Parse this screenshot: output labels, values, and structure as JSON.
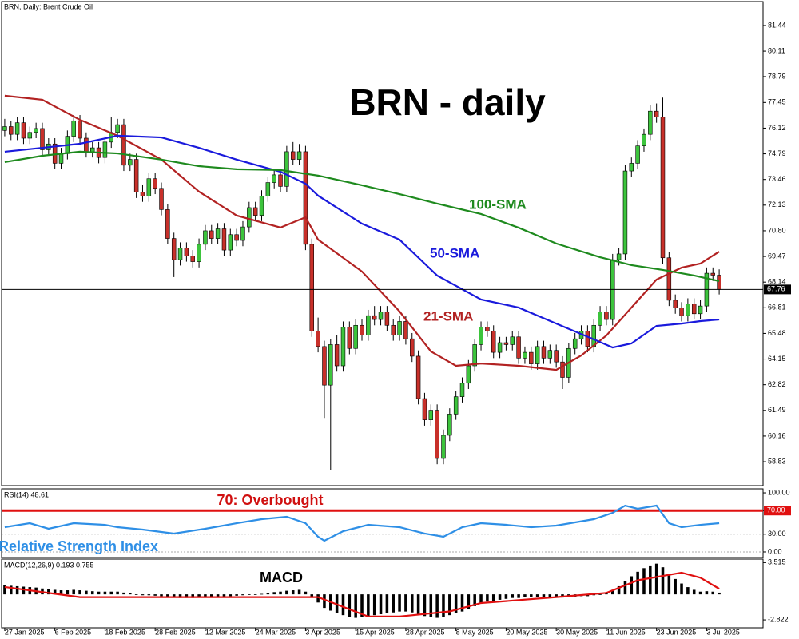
{
  "chart_data": [
    {
      "type": "candlestick",
      "title": "BRN, Daily:  Brent Crude Oil",
      "annotation": "BRN - daily",
      "up_color": "#3cc43c",
      "down_color": "#c8302a",
      "xlim": [
        -0.5,
        121
      ],
      "ylim": [
        57.59,
        82.68
      ],
      "yticks": [
        81.44,
        80.11,
        78.79,
        77.45,
        76.12,
        74.79,
        73.46,
        72.13,
        {
          "value": 70.8,
          "label": "70.80"
        },
        69.47,
        68.14,
        66.81,
        65.48,
        64.15,
        62.82,
        61.49,
        60.16,
        58.83
      ],
      "xticks": [
        {
          "value": 0,
          "label": "27 Jan 2025"
        },
        {
          "value": 8,
          "label": "6 Feb 2025"
        },
        {
          "value": 16,
          "label": "18 Feb 2025"
        },
        {
          "value": 24,
          "label": "28 Feb 2025"
        },
        {
          "value": 32,
          "label": "12 Mar 2025"
        },
        {
          "value": 40,
          "label": "24 Mar 2025"
        },
        {
          "value": 48,
          "label": "3 Apr 2025"
        },
        {
          "value": 56,
          "label": "15 Apr 2025"
        },
        {
          "value": 64,
          "label": "28 Apr 2025"
        },
        {
          "value": 72,
          "label": "8 May 2025"
        },
        {
          "value": 80,
          "label": "20 May 2025"
        },
        {
          "value": 88,
          "label": "30 May 2025"
        },
        {
          "value": 96,
          "label": "11 Jun 2025"
        },
        {
          "value": 104,
          "label": "23 Jun 2025"
        },
        {
          "value": 112,
          "label": "3 Jul 2025"
        }
      ],
      "candles": [
        [
          76.0,
          76.6,
          75.7,
          76.2
        ],
        [
          76.2,
          76.5,
          75.5,
          75.8
        ],
        [
          75.8,
          76.7,
          75.5,
          76.4
        ],
        [
          76.4,
          76.7,
          75.3,
          75.6
        ],
        [
          75.6,
          76.2,
          75.3,
          75.9
        ],
        [
          75.9,
          76.4,
          75.6,
          76.1
        ],
        [
          76.1,
          76.4,
          74.7,
          75.0
        ],
        [
          75.0,
          75.6,
          74.7,
          75.3
        ],
        [
          75.3,
          75.6,
          74.0,
          74.3
        ],
        [
          74.3,
          75.1,
          74.0,
          74.8
        ],
        [
          74.8,
          76.0,
          74.5,
          75.7
        ],
        [
          75.7,
          76.8,
          75.4,
          76.5
        ],
        [
          76.5,
          76.8,
          75.3,
          75.6
        ],
        [
          75.6,
          75.9,
          74.6,
          74.9
        ],
        [
          74.9,
          75.4,
          74.6,
          75.1
        ],
        [
          75.1,
          75.4,
          74.3,
          74.6
        ],
        [
          74.6,
          75.7,
          74.3,
          75.4
        ],
        [
          75.4,
          76.7,
          75.1,
          75.9
        ],
        [
          75.9,
          76.6,
          75.6,
          76.3
        ],
        [
          76.3,
          76.6,
          73.9,
          74.2
        ],
        [
          74.2,
          74.8,
          73.9,
          74.5
        ],
        [
          74.5,
          74.8,
          72.5,
          72.8
        ],
        [
          72.8,
          73.2,
          72.3,
          72.6
        ],
        [
          72.6,
          73.8,
          72.3,
          73.5
        ],
        [
          73.5,
          73.8,
          72.7,
          73.0
        ],
        [
          73.0,
          73.3,
          71.6,
          71.9
        ],
        [
          71.9,
          72.2,
          70.1,
          70.4
        ],
        [
          70.4,
          70.7,
          68.4,
          69.3
        ],
        [
          69.3,
          70.2,
          69.0,
          69.9
        ],
        [
          69.9,
          70.2,
          69.2,
          69.5
        ],
        [
          69.5,
          69.8,
          68.9,
          69.2
        ],
        [
          69.2,
          70.4,
          68.9,
          70.1
        ],
        [
          70.1,
          71.1,
          69.8,
          70.8
        ],
        [
          70.8,
          71.1,
          70.1,
          70.4
        ],
        [
          70.4,
          71.2,
          70.1,
          70.9
        ],
        [
          70.9,
          71.2,
          69.5,
          69.8
        ],
        [
          69.8,
          70.9,
          69.5,
          70.6
        ],
        [
          70.6,
          70.9,
          70.0,
          70.3
        ],
        [
          70.3,
          71.3,
          70.0,
          71.0
        ],
        [
          71.0,
          72.3,
          70.7,
          72.0
        ],
        [
          72.0,
          72.3,
          71.3,
          71.6
        ],
        [
          71.6,
          72.9,
          71.3,
          72.6
        ],
        [
          72.6,
          73.6,
          72.3,
          73.3
        ],
        [
          73.3,
          74.0,
          73.0,
          73.7
        ],
        [
          73.7,
          74.0,
          72.8,
          73.1
        ],
        [
          73.1,
          75.2,
          72.8,
          74.9
        ],
        [
          74.9,
          75.4,
          74.2,
          74.5
        ],
        [
          74.5,
          75.3,
          74.2,
          74.9
        ],
        [
          74.9,
          75.2,
          69.8,
          70.1
        ],
        [
          70.1,
          70.4,
          65.3,
          65.6
        ],
        [
          65.6,
          66.3,
          64.5,
          64.8
        ],
        [
          64.8,
          65.1,
          61.1,
          62.8
        ],
        [
          62.8,
          65.2,
          58.4,
          64.9
        ],
        [
          64.9,
          65.4,
          63.5,
          63.8
        ],
        [
          63.8,
          66.1,
          63.5,
          65.8
        ],
        [
          65.8,
          66.1,
          64.4,
          64.7
        ],
        [
          64.7,
          66.2,
          64.4,
          65.9
        ],
        [
          65.9,
          66.2,
          65.1,
          65.4
        ],
        [
          65.4,
          66.7,
          65.1,
          66.4
        ],
        [
          66.4,
          66.9,
          65.9,
          66.2
        ],
        [
          66.2,
          66.9,
          65.9,
          66.6
        ],
        [
          66.6,
          66.9,
          65.6,
          65.9
        ],
        [
          65.9,
          66.2,
          65.1,
          65.4
        ],
        [
          65.4,
          66.4,
          65.1,
          66.1
        ],
        [
          66.1,
          66.4,
          64.9,
          65.2
        ],
        [
          65.2,
          65.5,
          64.0,
          64.3
        ],
        [
          64.3,
          64.6,
          61.8,
          62.1
        ],
        [
          62.1,
          62.4,
          60.7,
          61.0
        ],
        [
          61.0,
          61.8,
          60.7,
          61.5
        ],
        [
          61.5,
          61.8,
          58.7,
          59.0
        ],
        [
          59.0,
          60.5,
          58.7,
          60.2
        ],
        [
          60.2,
          61.6,
          59.9,
          61.3
        ],
        [
          61.3,
          62.5,
          61.0,
          62.2
        ],
        [
          62.2,
          63.2,
          61.9,
          62.9
        ],
        [
          62.9,
          64.1,
          62.6,
          63.8
        ],
        [
          63.8,
          65.2,
          63.5,
          64.9
        ],
        [
          64.9,
          66.1,
          64.6,
          65.8
        ],
        [
          65.8,
          66.1,
          65.3,
          65.6
        ],
        [
          65.6,
          65.9,
          64.2,
          64.5
        ],
        [
          64.5,
          65.3,
          64.2,
          65.0
        ],
        [
          65.0,
          65.3,
          64.6,
          64.9
        ],
        [
          64.9,
          65.6,
          64.6,
          65.3
        ],
        [
          65.3,
          65.6,
          63.9,
          64.2
        ],
        [
          64.2,
          64.8,
          63.9,
          64.5
        ],
        [
          64.5,
          64.8,
          63.6,
          63.9
        ],
        [
          63.9,
          65.1,
          63.6,
          64.8
        ],
        [
          64.8,
          65.1,
          63.9,
          64.2
        ],
        [
          64.2,
          64.9,
          63.9,
          64.6
        ],
        [
          64.6,
          64.9,
          63.7,
          64.0
        ],
        [
          64.0,
          64.3,
          62.6,
          63.2
        ],
        [
          63.2,
          65.0,
          62.9,
          64.7
        ],
        [
          64.7,
          65.5,
          64.4,
          65.2
        ],
        [
          65.2,
          65.9,
          64.9,
          65.6
        ],
        [
          65.6,
          65.9,
          64.5,
          64.8
        ],
        [
          64.8,
          66.2,
          64.5,
          65.9
        ],
        [
          65.9,
          66.9,
          65.6,
          66.6
        ],
        [
          66.6,
          66.9,
          65.9,
          66.2
        ],
        [
          66.2,
          69.6,
          65.9,
          69.3
        ],
        [
          69.3,
          69.9,
          69.0,
          69.6
        ],
        [
          69.6,
          74.2,
          69.3,
          73.9
        ],
        [
          73.9,
          74.6,
          73.6,
          74.3
        ],
        [
          74.3,
          75.5,
          74.0,
          75.2
        ],
        [
          75.2,
          76.1,
          74.9,
          75.8
        ],
        [
          75.8,
          77.3,
          75.5,
          77.0
        ],
        [
          77.0,
          77.4,
          76.4,
          76.7
        ],
        [
          76.7,
          77.7,
          69.1,
          69.4
        ],
        [
          69.4,
          69.7,
          66.9,
          67.2
        ],
        [
          67.2,
          67.5,
          66.5,
          66.8
        ],
        [
          66.8,
          67.1,
          66.1,
          66.4
        ],
        [
          66.4,
          67.3,
          66.1,
          67.0
        ],
        [
          67.0,
          67.3,
          66.2,
          66.5
        ],
        [
          66.5,
          67.2,
          66.2,
          66.9
        ],
        [
          66.9,
          68.9,
          66.6,
          68.6
        ],
        [
          68.6,
          68.9,
          68.2,
          68.5
        ],
        [
          68.5,
          68.8,
          67.5,
          67.76
        ]
      ],
      "series": [
        {
          "name": "21-SMA",
          "color": "#b22222",
          "x": [
            0,
            6,
            12,
            18,
            25,
            31,
            37,
            44,
            48,
            50,
            57,
            63,
            68,
            72,
            76,
            82,
            88,
            92,
            96,
            100,
            104,
            108,
            111,
            114
          ],
          "values": [
            77.8,
            77.59,
            76.55,
            75.73,
            74.49,
            72.83,
            71.59,
            70.97,
            71.5,
            70.34,
            68.69,
            66.62,
            64.55,
            63.8,
            63.92,
            63.8,
            63.59,
            64.34,
            65.37,
            66.82,
            68.27,
            68.89,
            69.1,
            69.72
          ]
        },
        {
          "name": "50-SMA",
          "color": "#1a1adc",
          "x": [
            0,
            6,
            12,
            18,
            25,
            31,
            37,
            44,
            48,
            50,
            57,
            63,
            69,
            76,
            82,
            88,
            94,
            97,
            100,
            104,
            108,
            111,
            114
          ],
          "values": [
            74.9,
            75.1,
            75.31,
            75.73,
            75.64,
            75.1,
            74.49,
            73.86,
            73.24,
            72.62,
            71.17,
            70.34,
            68.48,
            67.24,
            66.82,
            65.99,
            65.17,
            64.75,
            64.96,
            65.87,
            65.99,
            66.12,
            66.2
          ]
        },
        {
          "name": "100-SMA",
          "color": "#1e8a1e",
          "x": [
            0,
            6,
            12,
            18,
            25,
            31,
            37,
            44,
            50,
            57,
            63,
            69,
            76,
            82,
            88,
            95,
            100,
            105,
            110,
            114
          ],
          "values": [
            74.36,
            74.69,
            74.9,
            74.81,
            74.49,
            74.15,
            73.99,
            73.95,
            73.66,
            73.16,
            72.7,
            72.21,
            71.67,
            70.96,
            70.14,
            69.43,
            69.02,
            68.77,
            68.48,
            68.19
          ]
        }
      ]
    },
    {
      "type": "line",
      "title": "RSI(14) 48.61",
      "annotations": [
        "70: Overbought",
        "Relative Strength Index"
      ],
      "color": "#2e8fe6",
      "level": 70,
      "level_color": "#e01010",
      "ylim": [
        -9.5,
        106.8
      ],
      "yticks": [
        {
          "value": 100,
          "label": "100.00"
        },
        {
          "value": 70,
          "label": "70.00"
        },
        {
          "value": 30,
          "label": "30.00"
        },
        {
          "value": 0,
          "label": "0.00"
        }
      ],
      "x": [
        0,
        4,
        7,
        11,
        16,
        18,
        22,
        27,
        32,
        37,
        41,
        45,
        48,
        50,
        51,
        54,
        58,
        63,
        67,
        70,
        73,
        76,
        80,
        84,
        88,
        94,
        97,
        99,
        101,
        104,
        106,
        108,
        111,
        114
      ],
      "values": [
        41.9,
        48.6,
        39.2,
        48.6,
        45.9,
        41.9,
        37.8,
        31.1,
        39.2,
        48.6,
        55.4,
        59.5,
        48.6,
        25.7,
        18.9,
        35.1,
        45.9,
        41.9,
        31.1,
        25.7,
        41.9,
        48.6,
        45.9,
        41.9,
        44.6,
        55.4,
        66.2,
        78.4,
        73.0,
        78.4,
        48.6,
        41.9,
        45.9,
        48.61
      ]
    },
    {
      "type": "macd",
      "title": "MACD(12,26,9) 0.193 0.755",
      "annotation": "MACD",
      "ylim": [
        -3.7,
        3.9
      ],
      "yticks": [
        3.515,
        -2.822
      ],
      "histogram": [
        1.0,
        0.95,
        0.9,
        0.85,
        0.8,
        0.75,
        0.65,
        0.6,
        0.5,
        0.45,
        0.45,
        0.5,
        0.45,
        0.4,
        0.35,
        0.3,
        0.3,
        0.3,
        0.3,
        0.2,
        0.1,
        0.0,
        -0.1,
        -0.1,
        -0.15,
        -0.2,
        -0.3,
        -0.35,
        -0.4,
        -0.4,
        -0.4,
        -0.35,
        -0.3,
        -0.3,
        -0.25,
        -0.25,
        -0.2,
        -0.15,
        -0.1,
        -0.05,
        0.0,
        0.05,
        0.15,
        0.25,
        0.3,
        0.4,
        0.45,
        0.5,
        0.3,
        -0.3,
        -0.9,
        -1.5,
        -1.8,
        -2.1,
        -2.3,
        -2.5,
        -2.6,
        -2.5,
        -2.4,
        -2.3,
        -2.2,
        -2.1,
        -2.0,
        -1.9,
        -1.9,
        -2.0,
        -2.2,
        -2.4,
        -2.5,
        -2.6,
        -2.5,
        -2.3,
        -2.1,
        -1.9,
        -1.6,
        -1.3,
        -1.0,
        -0.8,
        -0.7,
        -0.6,
        -0.5,
        -0.4,
        -0.4,
        -0.3,
        -0.3,
        -0.3,
        -0.3,
        -0.3,
        -0.3,
        -0.35,
        -0.3,
        -0.25,
        -0.2,
        -0.2,
        -0.1,
        0.0,
        0.1,
        0.5,
        0.9,
        1.5,
        2.0,
        2.5,
        2.9,
        3.2,
        3.4,
        3.0,
        2.3,
        1.7,
        1.2,
        0.8,
        0.5,
        0.3,
        0.35,
        0.3,
        0.193
      ],
      "signal": {
        "color": "#e01010",
        "x": [
          0,
          12,
          44,
          50,
          58,
          63,
          71,
          76,
          88,
          96,
          101,
          108,
          111,
          114
        ],
        "values": [
          0.81,
          -0.31,
          -0.31,
          -0.31,
          -2.45,
          -2.45,
          -1.89,
          -0.96,
          -0.31,
          0.16,
          1.56,
          2.4,
          1.84,
          0.62
        ]
      }
    }
  ]
}
